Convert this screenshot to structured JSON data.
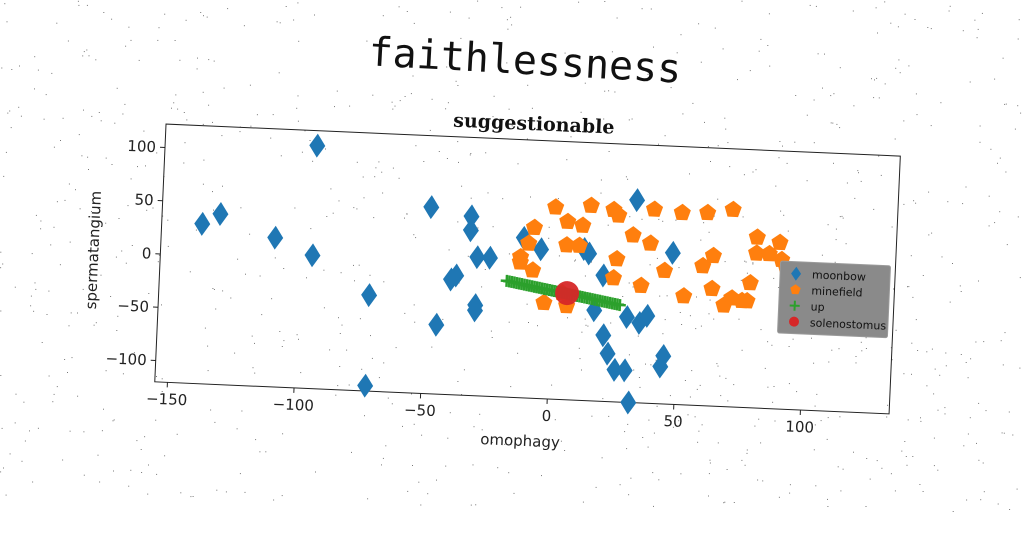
{
  "suptitle": "faithlessness",
  "chart_data": {
    "type": "scatter",
    "title": "suggestionable",
    "xlabel": "omophagy",
    "ylabel": "spermatangium",
    "xlim": [
      -155,
      135
    ],
    "ylim": [
      -120,
      122
    ],
    "xticks": [
      -150,
      -100,
      -50,
      0,
      50,
      100
    ],
    "yticks": [
      -100,
      -50,
      0,
      50,
      100
    ],
    "xtick_labels": [
      "−150",
      "−100",
      "−50",
      "0",
      "50",
      "100"
    ],
    "ytick_labels": [
      "−100",
      "−50",
      "0",
      "50",
      "100"
    ],
    "grid": false,
    "legend_position": "center-right",
    "series": [
      {
        "name": "moonbow",
        "marker": "diamond",
        "color": "#1f77b4",
        "points": [
          [
            -95,
            108
          ],
          [
            -139,
            30
          ],
          [
            -132,
            40
          ],
          [
            -110,
            20
          ],
          [
            -95,
            5
          ],
          [
            -72,
            -30
          ],
          [
            -72,
            -115
          ],
          [
            -49,
            55
          ],
          [
            -33,
            48
          ],
          [
            -33,
            35
          ],
          [
            -30,
            10
          ],
          [
            -25,
            10
          ],
          [
            -40,
            -12
          ],
          [
            -38,
            -8
          ],
          [
            -30,
            -35
          ],
          [
            -30,
            -40
          ],
          [
            -45,
            -55
          ],
          [
            -12,
            30
          ],
          [
            -5,
            20
          ],
          [
            12,
            22
          ],
          [
            14,
            18
          ],
          [
            20,
            -2
          ],
          [
            17,
            -35
          ],
          [
            21,
            -58
          ],
          [
            23,
            -75
          ],
          [
            26,
            -90
          ],
          [
            30,
            -90
          ],
          [
            32,
            -120
          ],
          [
            30,
            -40
          ],
          [
            35,
            -45
          ],
          [
            38,
            -38
          ],
          [
            44,
            -85
          ],
          [
            45,
            -75
          ],
          [
            47,
            22
          ],
          [
            32,
            70
          ],
          [
            125,
            -25
          ]
        ]
      },
      {
        "name": "minefield",
        "marker": "pentagon",
        "color": "#ff7f0e",
        "points": [
          [
            0,
            60
          ],
          [
            14,
            63
          ],
          [
            23,
            60
          ],
          [
            25,
            55
          ],
          [
            39,
            62
          ],
          [
            50,
            60
          ],
          [
            60,
            61
          ],
          [
            70,
            65
          ],
          [
            5,
            47
          ],
          [
            11,
            44
          ],
          [
            31,
            37
          ],
          [
            38,
            30
          ],
          [
            -8,
            40
          ],
          [
            -10,
            25
          ],
          [
            -13,
            12
          ],
          [
            -13,
            7
          ],
          [
            5,
            25
          ],
          [
            10,
            25
          ],
          [
            25,
            14
          ],
          [
            -8,
            0
          ],
          [
            4,
            -20
          ],
          [
            6,
            -32
          ],
          [
            -3,
            -30
          ],
          [
            35,
            -10
          ],
          [
            52,
            -18
          ],
          [
            63,
            -10
          ],
          [
            68,
            -25
          ],
          [
            71,
            -18
          ],
          [
            75,
            -20
          ],
          [
            77,
            -20
          ],
          [
            78,
            -3
          ],
          [
            80,
            25
          ],
          [
            80,
            40
          ],
          [
            89,
            36
          ],
          [
            90,
            20
          ],
          [
            92,
            12
          ],
          [
            94,
            8
          ],
          [
            85,
            25
          ],
          [
            63,
            21
          ],
          [
            59,
            11
          ],
          [
            44,
            5
          ],
          [
            24,
            -4
          ]
        ]
      },
      {
        "name": "up",
        "marker": "plus",
        "color": "#2ca02c",
        "x_range": [
          -18,
          27
        ],
        "x_step": 1,
        "y_at_x_min": -11,
        "y_at_x_max": -29
      },
      {
        "name": "solenostomus",
        "marker": "circle",
        "color": "#d62728",
        "points": [
          [
            6,
            -20
          ]
        ]
      }
    ]
  }
}
